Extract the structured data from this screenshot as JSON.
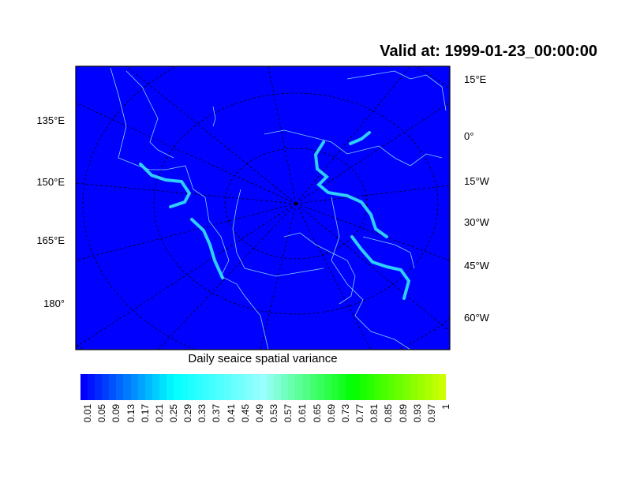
{
  "title": "Valid at: 1999-01-23_00:00:00",
  "map": {
    "background_color": "#0000ff",
    "coastline_color": "#7fd4ff",
    "ice_edge_color": "#33e6ff",
    "left_lon_labels": [
      "135°E",
      "150°E",
      "165°E",
      "180°"
    ],
    "right_lon_labels": [
      "15°E",
      "0°",
      "15°W",
      "30°W",
      "45°W",
      "60°W"
    ]
  },
  "colorbar": {
    "title": "Daily seaice spatial variance",
    "labels": [
      "0.01",
      "0.05",
      "0.09",
      "0.13",
      "0.17",
      "0.21",
      "0.25",
      "0.29",
      "0.33",
      "0.37",
      "0.41",
      "0.45",
      "0.49",
      "0.53",
      "0.57",
      "0.61",
      "0.65",
      "0.69",
      "0.73",
      "0.77",
      "0.81",
      "0.85",
      "0.89",
      "0.93",
      "0.97",
      "1"
    ],
    "color_stops": [
      "#0000ff",
      "#00ffff",
      "#99ffff",
      "#00ff00",
      "#ccff00"
    ]
  }
}
